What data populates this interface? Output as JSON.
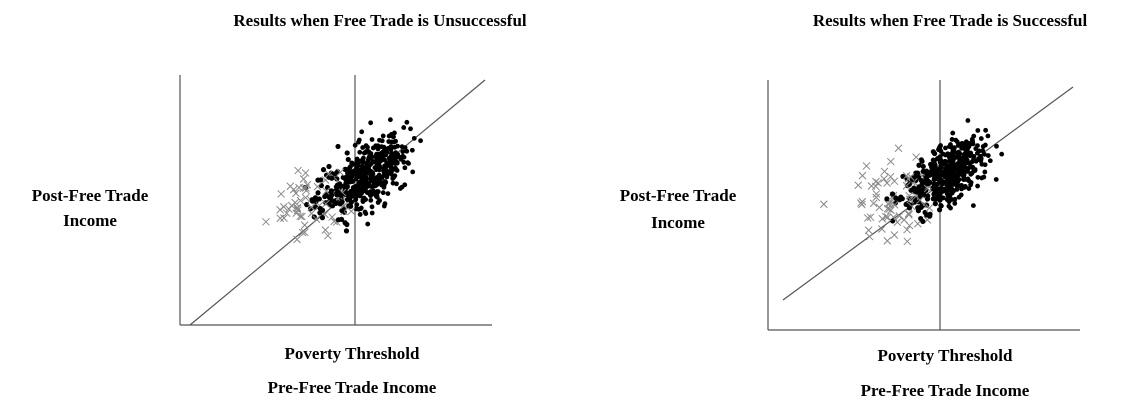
{
  "panels": [
    {
      "title": "Results when Free Trade is Unsuccessful",
      "y_label": [
        "Post-Free Trade",
        "Income"
      ],
      "threshold_label": "Poverty Threshold",
      "x_label": "Pre-Free Trade Income"
    },
    {
      "title": "Results when Free Trade is Successful",
      "y_label": [
        "Post-Free Trade",
        "Income"
      ],
      "threshold_label": "Poverty Threshold",
      "x_label": "Pre-Free Trade Income"
    }
  ]
}
